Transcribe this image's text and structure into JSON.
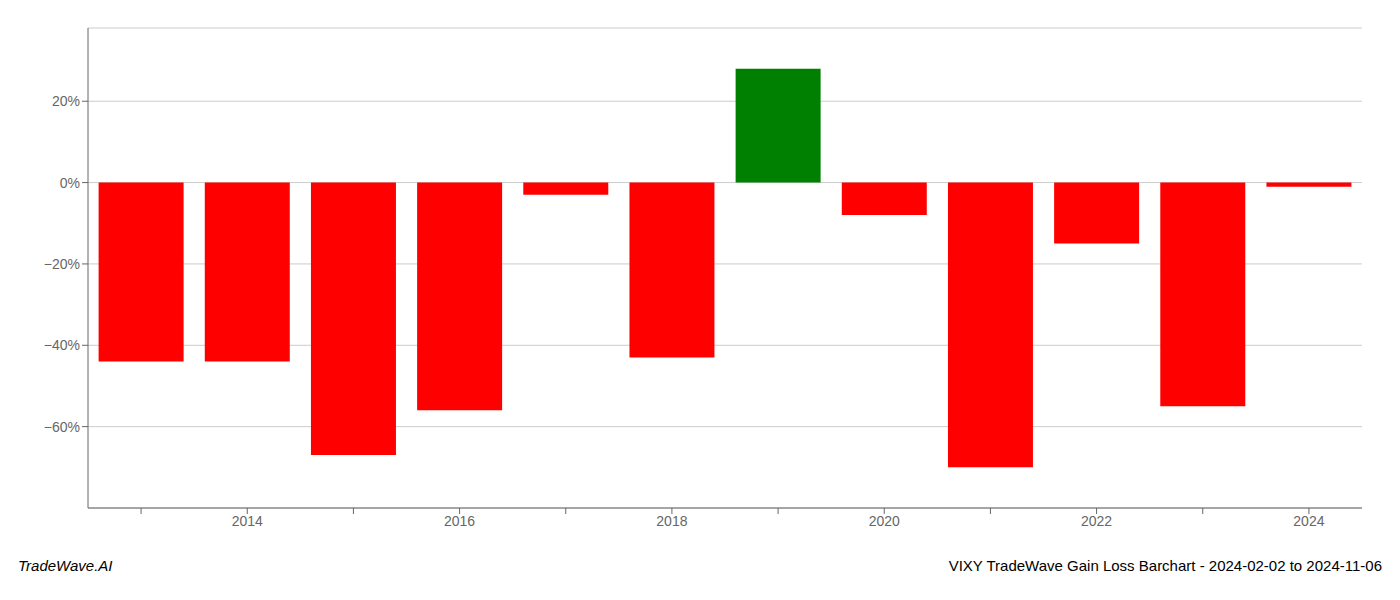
{
  "chart_data": {
    "type": "bar",
    "title": "VIXY TradeWave Gain Loss Barchart - 2024-02-02 to 2024-11-06",
    "annotations": [
      "TradeWave.AI"
    ],
    "categories": [
      null,
      "2014",
      null,
      "2016",
      null,
      "2018",
      null,
      "2020",
      null,
      "2022",
      null,
      "2024"
    ],
    "values": [
      -44,
      -44,
      -67,
      -56,
      -3,
      -43,
      28,
      -8,
      -70,
      -15,
      -55,
      -1
    ],
    "colors": [
      "red",
      "red",
      "red",
      "red",
      "red",
      "red",
      "green",
      "red",
      "red",
      "red",
      "red",
      "red"
    ],
    "ylim": [
      -80,
      38
    ],
    "yticks": [
      {
        "value": -60,
        "label": "−60%"
      },
      {
        "value": -40,
        "label": "−40%"
      },
      {
        "value": -20,
        "label": "−20%"
      },
      {
        "value": 0,
        "label": "0%"
      },
      {
        "value": 20,
        "label": "20%"
      }
    ],
    "grid": true
  }
}
